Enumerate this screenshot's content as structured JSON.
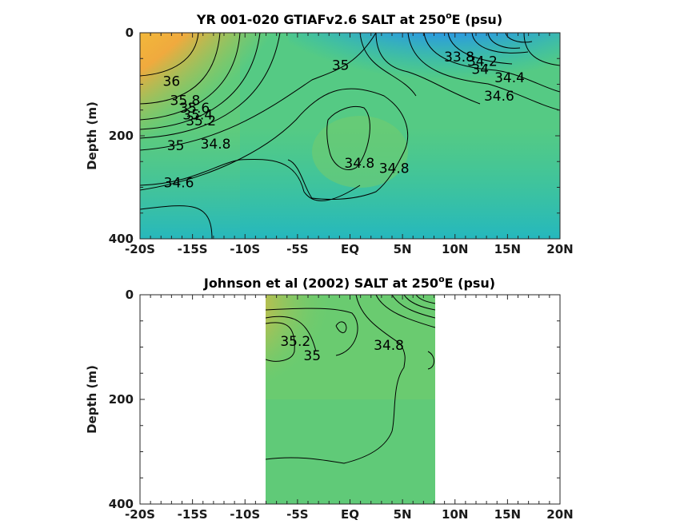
{
  "chart_data": [
    {
      "type": "heatmap",
      "title": "YR 001-020 GTIAFv2.6 SALT at 250",
      "title_sup": "o",
      "title_tail": "E (psu)",
      "ylabel": "Depth (m)",
      "x_ticks": [
        "-20S",
        "-15S",
        "-10S",
        "-5S",
        "EQ",
        "5N",
        "10N",
        "15N",
        "20N"
      ],
      "x_tick_values": [
        -20,
        -15,
        -10,
        -5,
        0,
        5,
        10,
        15,
        20
      ],
      "xlim": [
        -20,
        20
      ],
      "y_ticks": [
        "0",
        "200",
        "400"
      ],
      "y_tick_values": [
        0,
        200,
        400
      ],
      "ylim": [
        0,
        400
      ],
      "y_reversed": true,
      "data_extent": [
        -20,
        20
      ],
      "colormap": [
        "#3b4cf5",
        "#2b86ec",
        "#19b9c9",
        "#56c988",
        "#a8c84a",
        "#f0b93a",
        "#f8f51e"
      ],
      "color_range": [
        33.6,
        36.2
      ],
      "contour_labels": [
        {
          "text": "36",
          "x": -17,
          "y": 103
        },
        {
          "text": "35.8",
          "x": -15.7,
          "y": 140
        },
        {
          "text": "35.6",
          "x": -14.8,
          "y": 155
        },
        {
          "text": "35.4",
          "x": -14.5,
          "y": 168
        },
        {
          "text": "35.2",
          "x": -14.2,
          "y": 180
        },
        {
          "text": "35",
          "x": -16.6,
          "y": 228
        },
        {
          "text": "34.8",
          "x": -12.8,
          "y": 225
        },
        {
          "text": "34.6",
          "x": -16.3,
          "y": 300
        },
        {
          "text": "35",
          "x": -0.9,
          "y": 72
        },
        {
          "text": "34.8",
          "x": 0.9,
          "y": 262
        },
        {
          "text": "34.8",
          "x": 4.2,
          "y": 272
        },
        {
          "text": "33.8",
          "x": 10.4,
          "y": 56
        },
        {
          "text": "34.2",
          "x": 12.6,
          "y": 64
        },
        {
          "text": "34",
          "x": 12.4,
          "y": 80
        },
        {
          "text": "34.4",
          "x": 15.2,
          "y": 96
        },
        {
          "text": "34.6",
          "x": 14.2,
          "y": 132
        }
      ]
    },
    {
      "type": "heatmap",
      "title": "Johnson et al (2002) SALT at 250",
      "title_sup": "o",
      "title_tail": "E (psu)",
      "ylabel": "Depth (m)",
      "x_ticks": [
        "-20S",
        "-15S",
        "-10S",
        "-5S",
        "EQ",
        "5N",
        "10N",
        "15N",
        "20N"
      ],
      "x_tick_values": [
        -20,
        -15,
        -10,
        -5,
        0,
        5,
        10,
        15,
        20
      ],
      "xlim": [
        -20,
        20
      ],
      "y_ticks": [
        "0",
        "200",
        "400"
      ],
      "y_tick_values": [
        0,
        200,
        400
      ],
      "ylim": [
        0,
        400
      ],
      "y_reversed": true,
      "data_extent": [
        -8,
        8
      ],
      "colormap": [
        "#3b4cf5",
        "#2b86ec",
        "#19b9c9",
        "#56c988",
        "#a8c84a",
        "#f0b93a",
        "#f8f51e"
      ],
      "color_range": [
        33.6,
        36.2
      ],
      "contour_labels": [
        {
          "text": "35.2",
          "x": -5.2,
          "y": 98
        },
        {
          "text": "35",
          "x": -3.6,
          "y": 125
        },
        {
          "text": "34.8",
          "x": 3.7,
          "y": 105
        }
      ]
    }
  ]
}
